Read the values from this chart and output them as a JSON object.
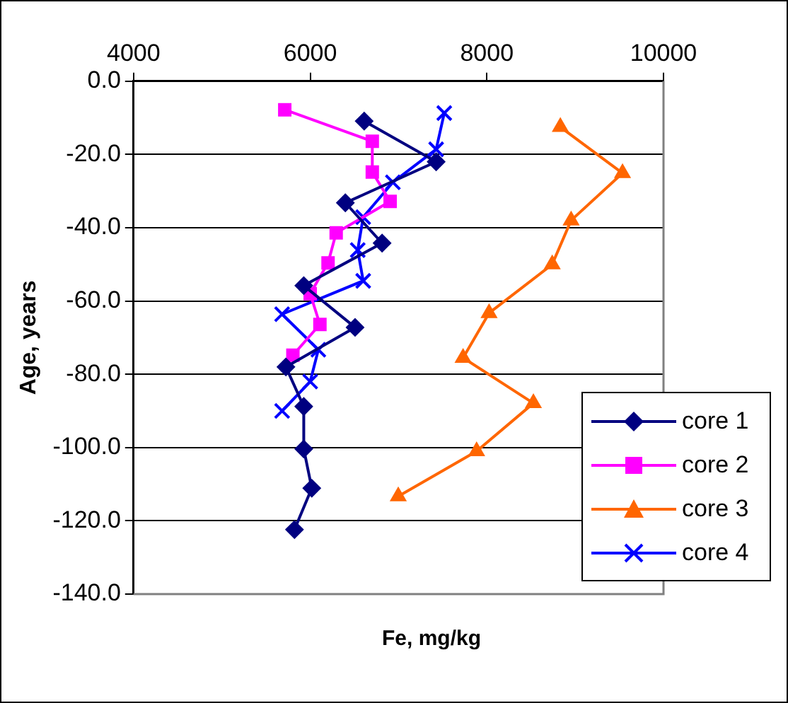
{
  "chart_data": {
    "type": "line",
    "xlabel": "Fe, mg/kg",
    "ylabel": "Age, years",
    "xlim": [
      4000,
      10000
    ],
    "xticks": [
      4000,
      6000,
      8000,
      10000
    ],
    "ylim": [
      -140,
      0
    ],
    "yticks": [
      {
        "value": 0,
        "label": "0.0"
      },
      {
        "value": -20,
        "label": "-20.0"
      },
      {
        "value": -40,
        "label": "-40.0"
      },
      {
        "value": -60,
        "label": "-60.0"
      },
      {
        "value": -80,
        "label": "-80.0"
      },
      {
        "value": -100,
        "label": "-100.0"
      },
      {
        "value": -120,
        "label": "-120.0"
      },
      {
        "value": -140,
        "label": "-140.0"
      }
    ],
    "grid": "y",
    "legend": "bottom right",
    "line_style": "solid",
    "series": [
      {
        "name": "core 1",
        "color": "#000080",
        "marker": "diamond",
        "x": [
          6611,
          7426,
          6398,
          6814,
          5927,
          6508,
          5725,
          5927,
          5927,
          6018,
          5822
        ],
        "values": [
          -10.9,
          -22,
          -33.2,
          -44.2,
          -55.8,
          -67.2,
          -78,
          -88.8,
          -100.4,
          -111.1,
          -122.4
        ]
      },
      {
        "name": "core 2",
        "color": "#ff00ff",
        "marker": "square",
        "x": [
          5712,
          6703,
          6703,
          6905,
          6294,
          6202,
          6000,
          6110,
          5804
        ],
        "values": [
          -7.8,
          -16.4,
          -24.8,
          -32.8,
          -41.4,
          -49.6,
          -58,
          -66.4,
          -74.8
        ]
      },
      {
        "name": "core 3",
        "color": "#ff6600",
        "marker": "triangle",
        "x": [
          8832,
          9536,
          8954,
          8740,
          8025,
          7731,
          8527,
          7884,
          6997
        ],
        "values": [
          -12.5,
          -25.1,
          -38,
          -50,
          -63.3,
          -75.5,
          -87.9,
          -101,
          -113.3
        ]
      },
      {
        "name": "core 4",
        "color": "#0000ff",
        "marker": "cross",
        "x": [
          7518,
          7426,
          6936,
          6600,
          6538,
          6600,
          5682,
          6092,
          6000,
          5682
        ],
        "values": [
          -8.7,
          -18.6,
          -27.6,
          -37.1,
          -46.1,
          -54.5,
          -63.6,
          -73.3,
          -82,
          -90
        ]
      }
    ]
  }
}
